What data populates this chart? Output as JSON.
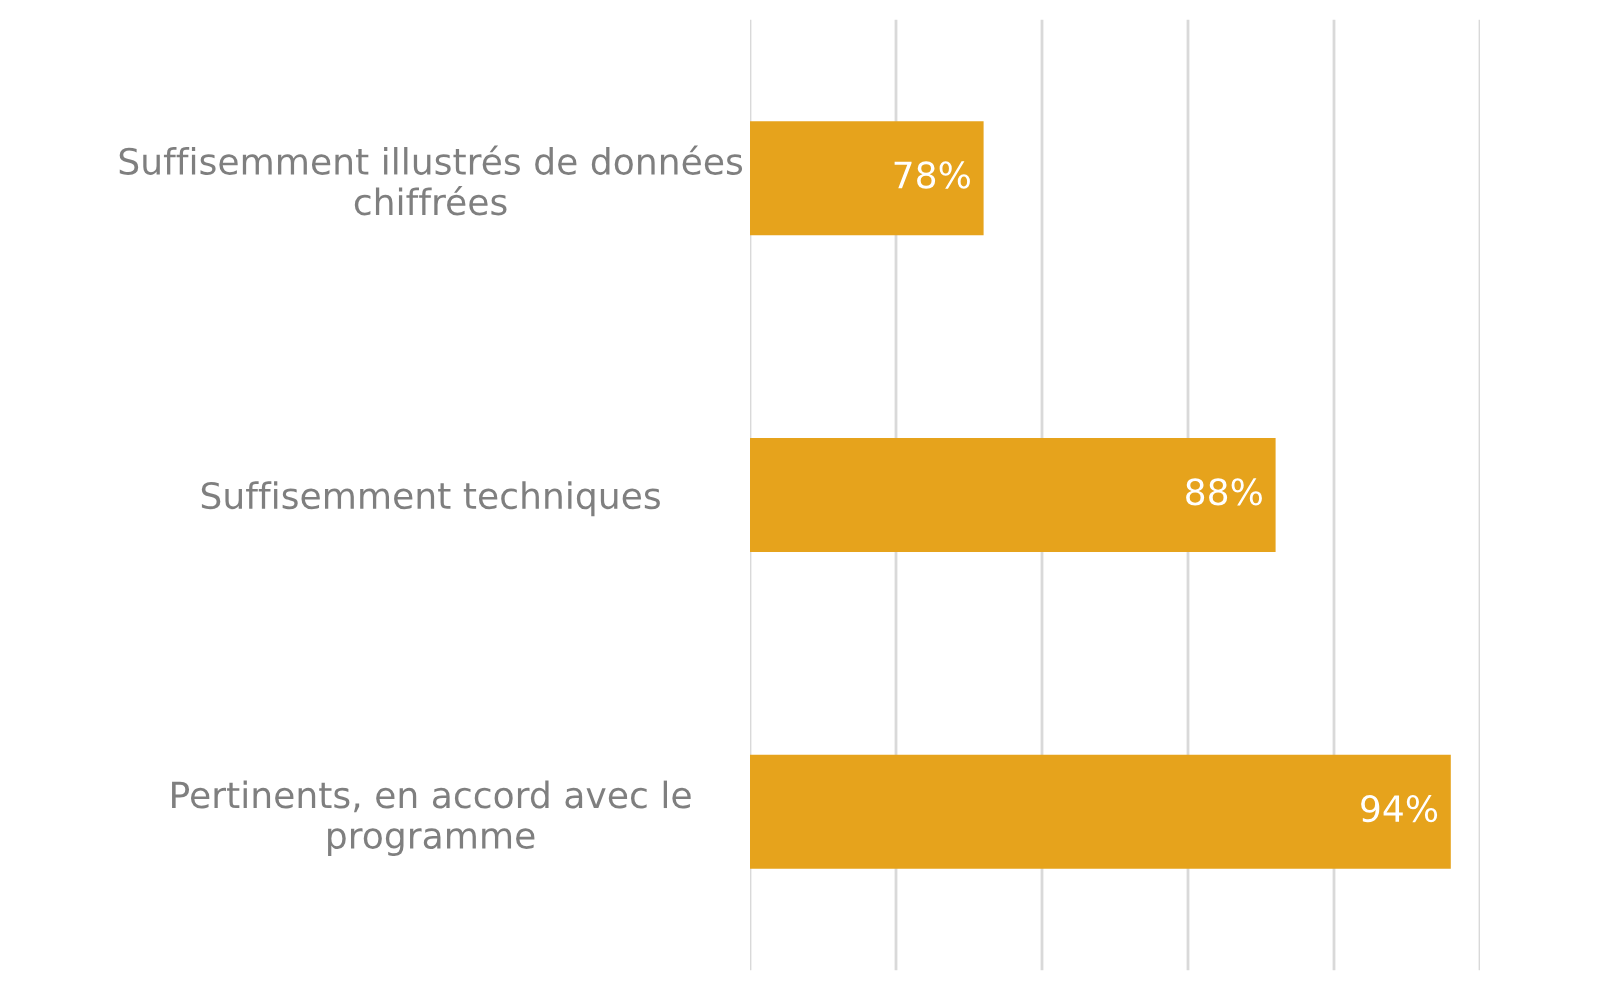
{
  "chart_data": {
    "type": "bar",
    "orientation": "horizontal",
    "categories": [
      "Suffisemment illustrés de données\nchiffrées",
      "Suffisemment techniques",
      "Pertinents, en accord avec le\nprogramme"
    ],
    "values": [
      78,
      88,
      94
    ],
    "value_labels": [
      "78%",
      "88%",
      "94%"
    ],
    "color": "#e6a31c",
    "xlim": [
      70,
      95
    ],
    "xticks": [
      {
        "value": 70,
        "label": null
      },
      {
        "value": 75,
        "label": null
      },
      {
        "value": 80,
        "label": null
      },
      {
        "value": 85,
        "label": null
      },
      {
        "value": 90,
        "label": null
      },
      {
        "value": 95,
        "label": null
      }
    ],
    "grid": "x",
    "tick_labels": "y"
  }
}
